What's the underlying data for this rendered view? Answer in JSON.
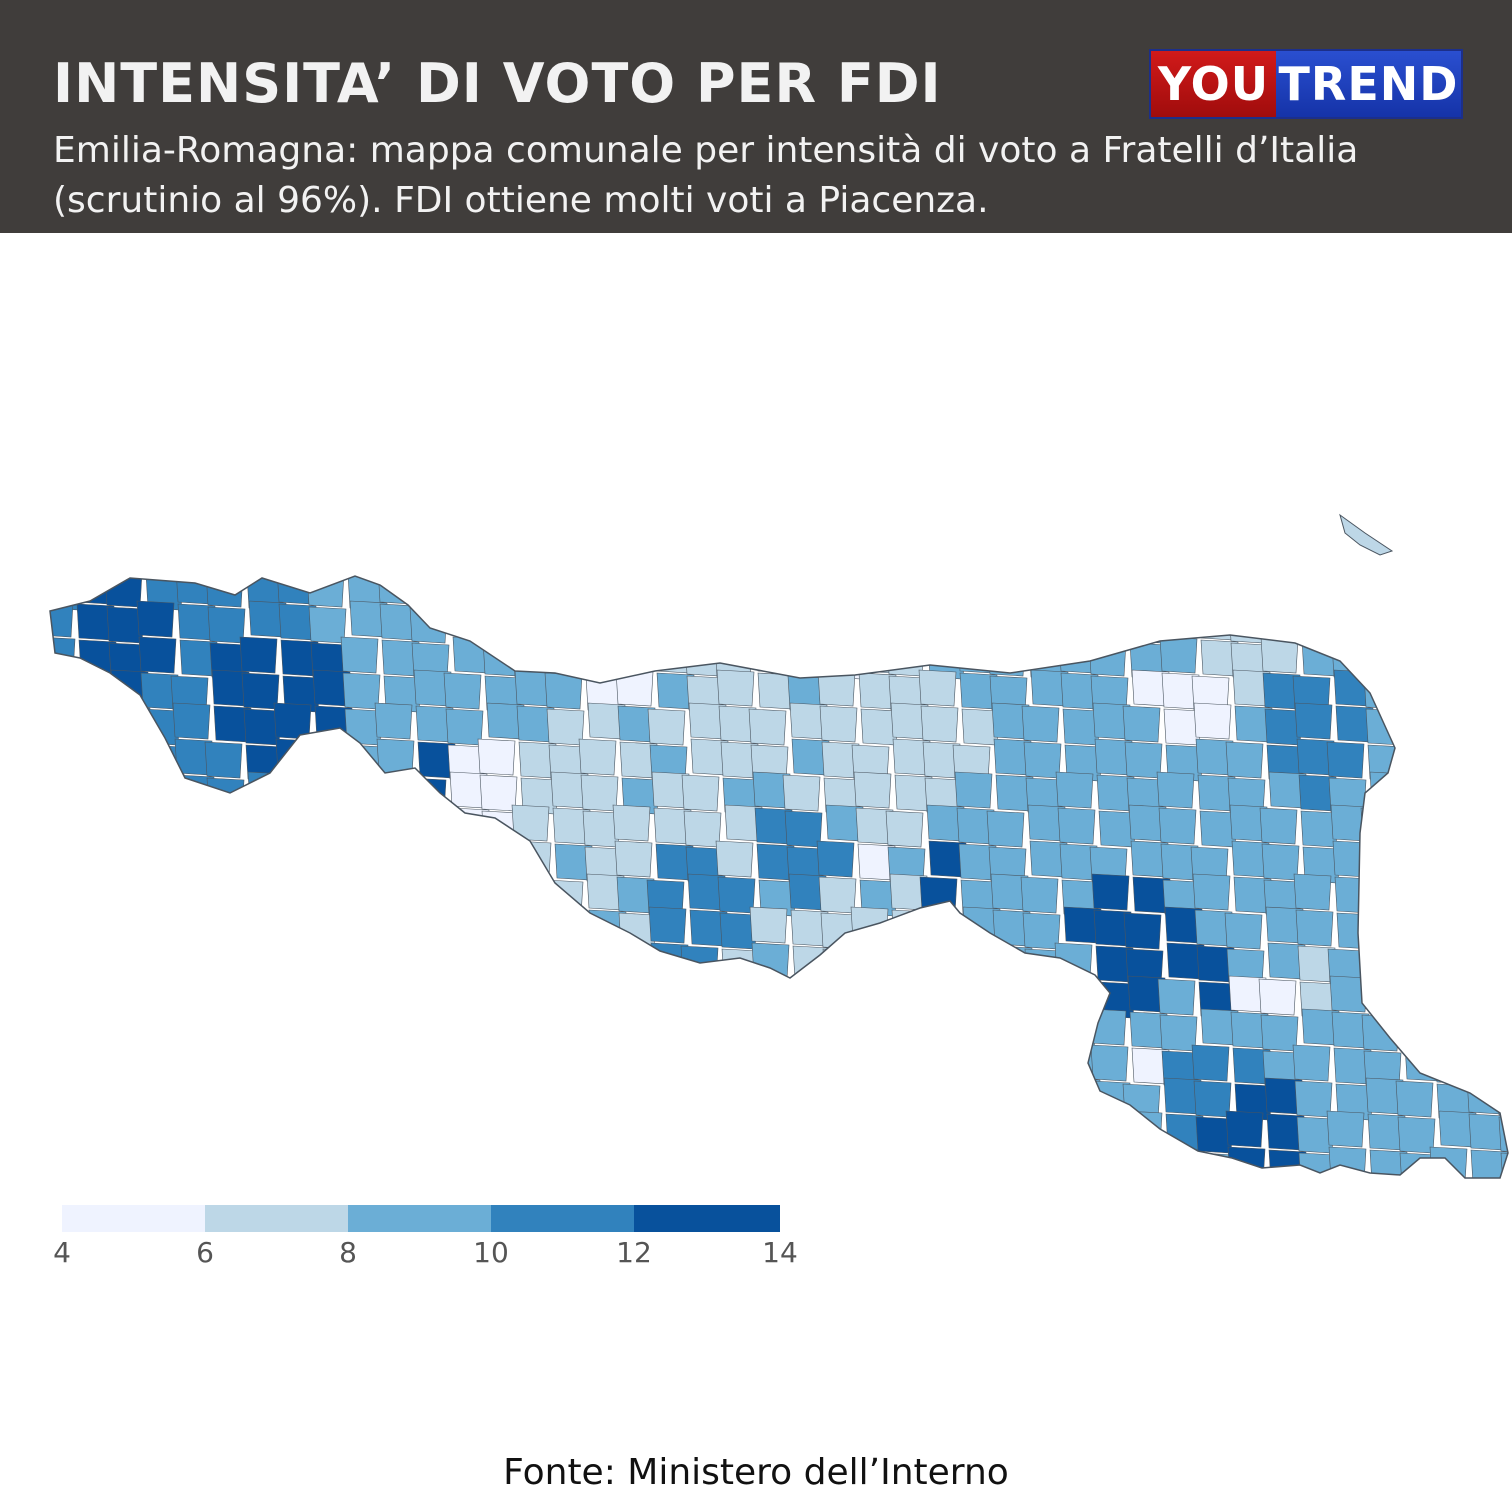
{
  "header": {
    "title": "INTENSITA’ DI VOTO PER FDI",
    "subtitle": "Emilia-Romagna: mappa comunale per intensità di voto a Fratelli d’Italia (scrutinio al 96%). FDI ottiene molti voti a Piacenza."
  },
  "logo": {
    "part1": "YOU",
    "part2": "TREND"
  },
  "legend": {
    "ticks": [
      "4",
      "6",
      "8",
      "10",
      "12",
      "14"
    ],
    "colors": [
      "#eff3ff",
      "#bdd7e7",
      "#6baed6",
      "#3182bd",
      "#08519c"
    ]
  },
  "source": "Fonte: Ministero dell’Interno",
  "map": {
    "region": "Emilia-Romagna",
    "border_color": "#4a5560"
  }
}
